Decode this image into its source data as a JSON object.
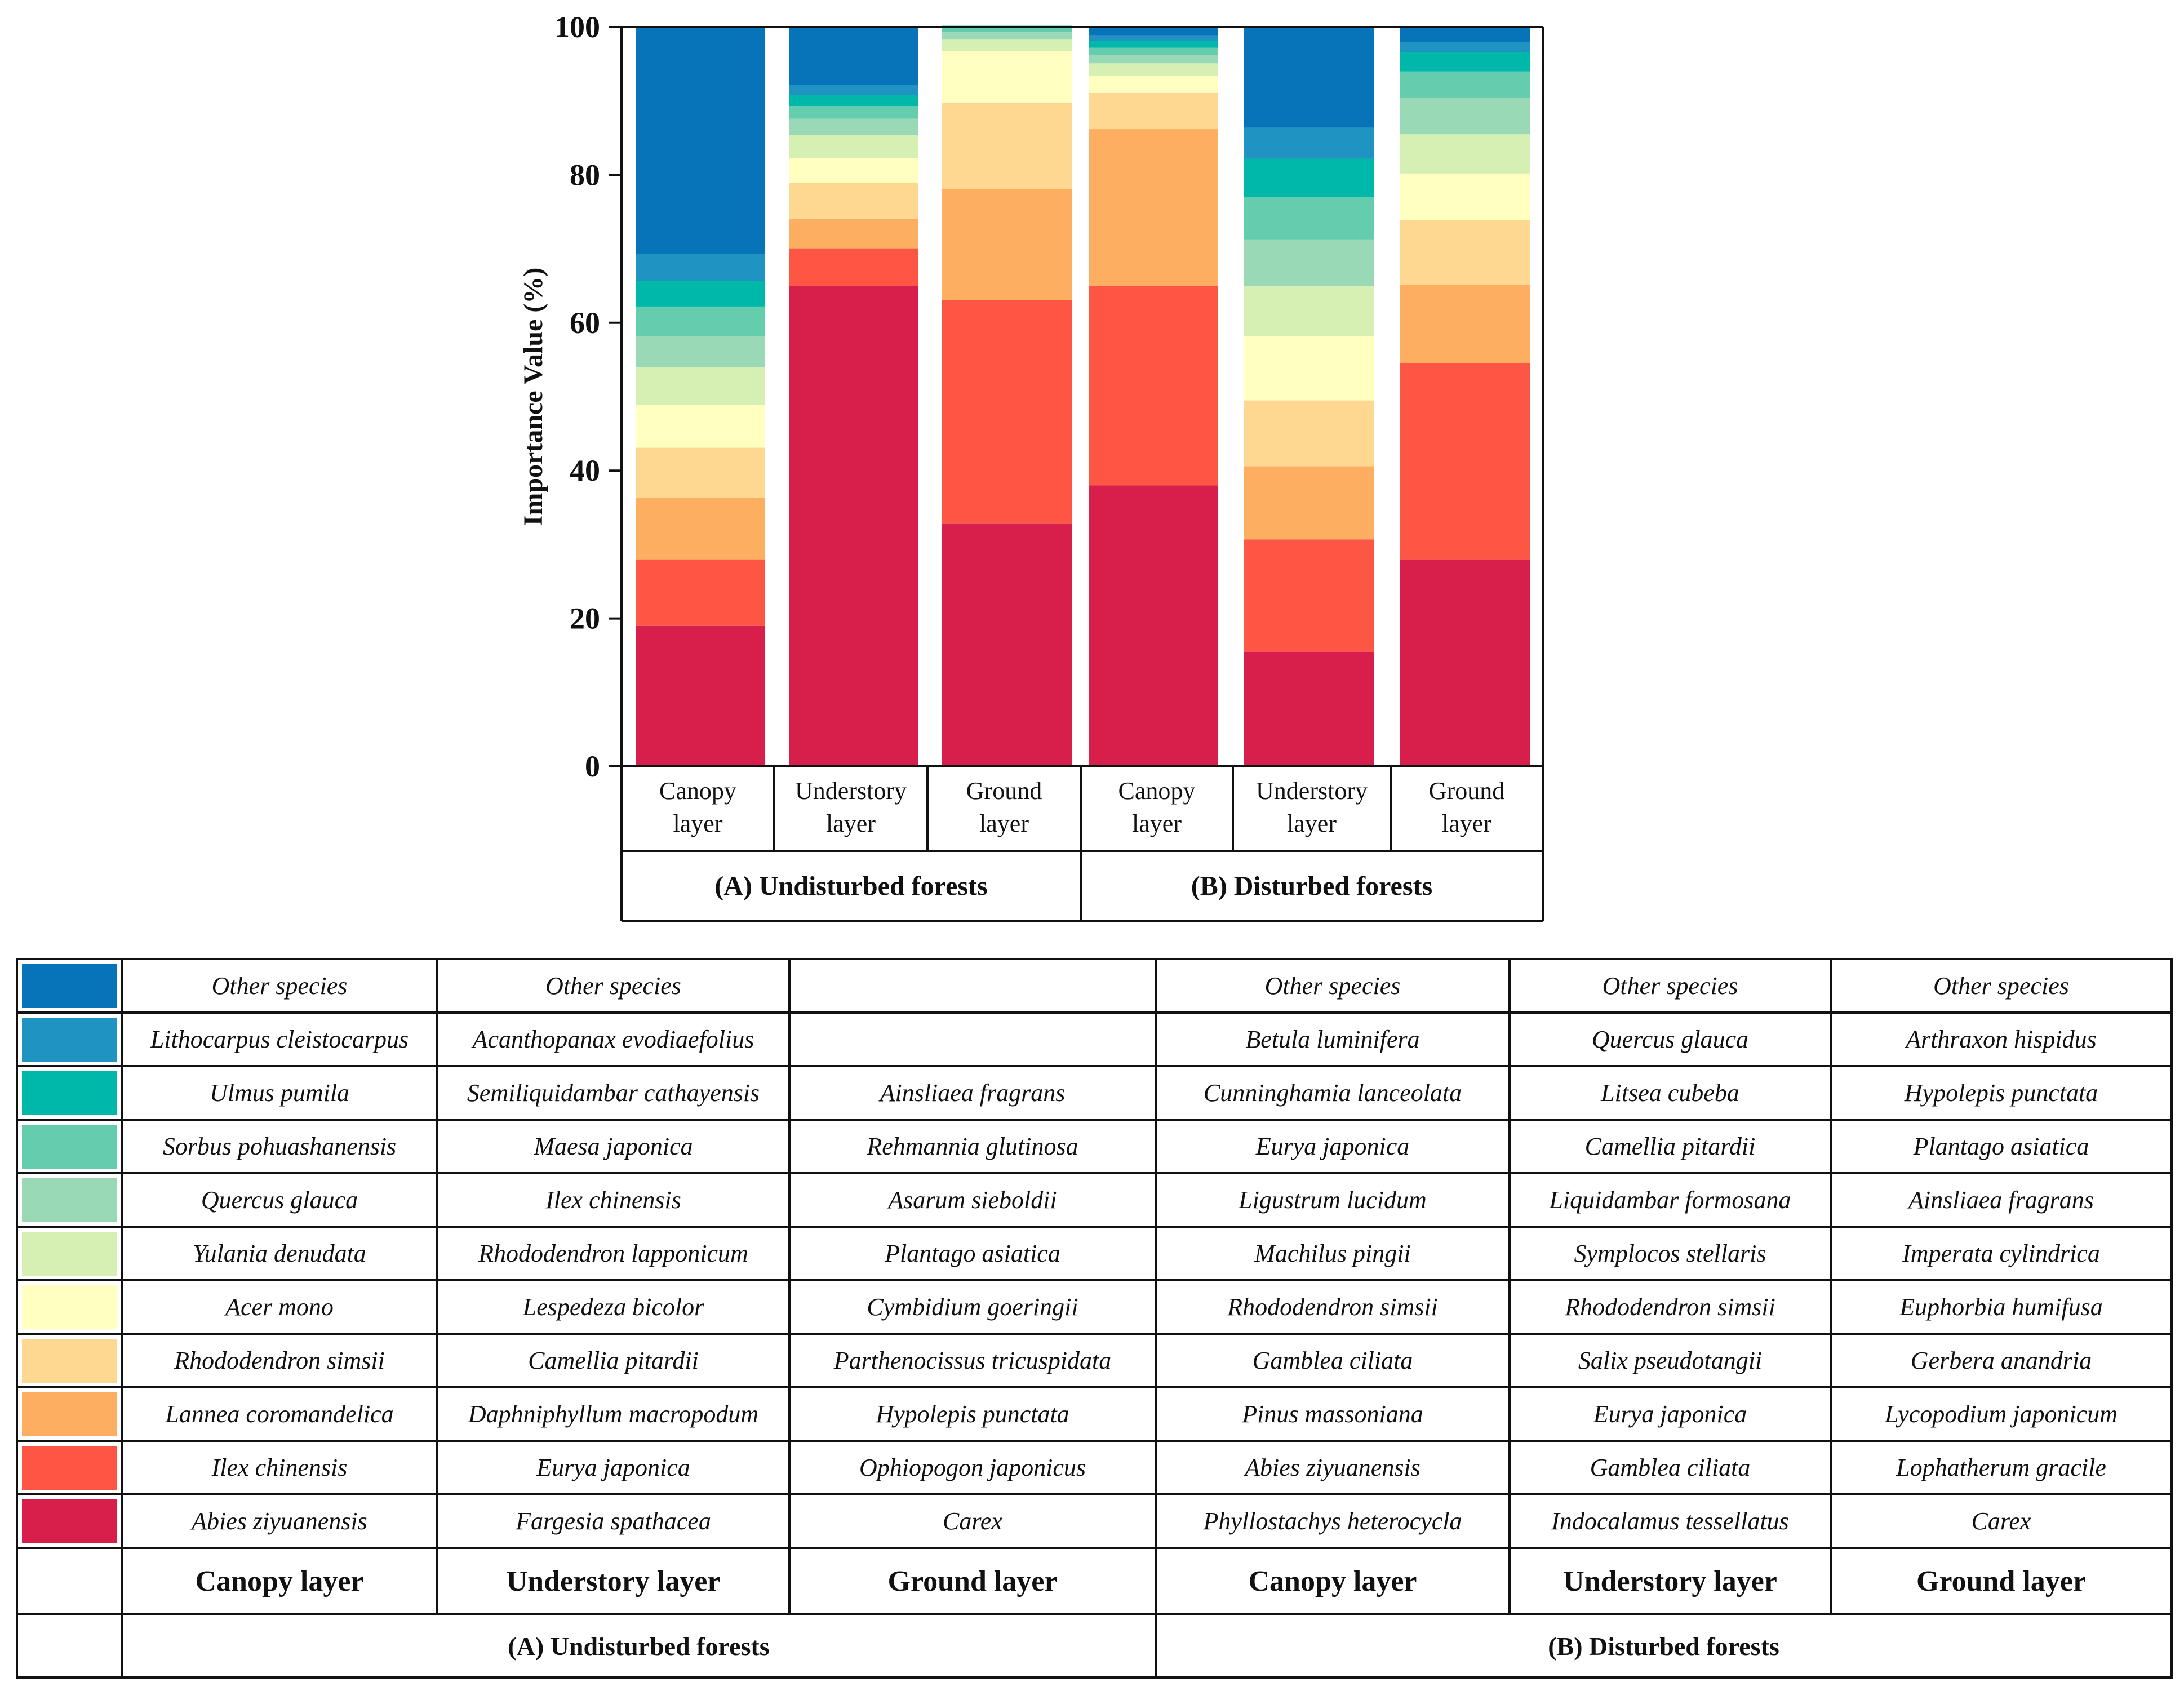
{
  "chart_data": {
    "type": "stacked-bar",
    "ylabel": "Importance Value    (%)",
    "ylim": [
      0,
      100
    ],
    "yticks": [
      "0",
      "20",
      "40",
      "60",
      "80",
      "100"
    ],
    "yticks_values": [
      0,
      20,
      40,
      60,
      80,
      100
    ],
    "groups": [
      "(A) Undisturbed forests",
      "(B) Disturbed forests"
    ],
    "bars": [
      {
        "group": 0,
        "label_lines": [
          "Canopy",
          "layer"
        ],
        "segments": [
          19,
          9,
          8.3,
          6.8,
          5.8,
          5.1,
          4.2,
          4,
          3.5,
          3.6,
          30.7
        ]
      },
      {
        "group": 0,
        "label_lines": [
          "Understory",
          "layer"
        ],
        "segments": [
          65,
          5,
          4.1,
          4.8,
          3.4,
          3.1,
          2.2,
          1.7,
          1.5,
          1.4,
          7.8
        ]
      },
      {
        "group": 0,
        "label_lines": [
          "Ground",
          "layer"
        ],
        "segments": [
          32.8,
          30.3,
          15,
          11.7,
          7,
          1.5,
          1,
          0.9,
          0,
          0,
          0
        ]
      },
      {
        "group": 1,
        "label_lines": [
          "Canopy",
          "layer"
        ],
        "segments": [
          38,
          27,
          21.2,
          4.9,
          2.3,
          1.7,
          1.1,
          1,
          0.9,
          0.7,
          1.2
        ]
      },
      {
        "group": 1,
        "label_lines": [
          "Understory",
          "layer"
        ],
        "segments": [
          15.5,
          15.2,
          9.9,
          8.9,
          8.7,
          6.8,
          6.2,
          5.8,
          5.2,
          4.2,
          13.6
        ]
      },
      {
        "group": 1,
        "label_lines": [
          "Ground",
          "layer"
        ],
        "segments": [
          28,
          26.5,
          10.6,
          8.8,
          6.3,
          5.3,
          4.9,
          3.6,
          2.6,
          1.4,
          2
        ]
      }
    ],
    "colors": [
      "#d81e4a",
      "#fd5645",
      "#fdae60",
      "#fed890",
      "#ffffbf",
      "#d6efb3",
      "#99d9b5",
      "#64cdad",
      "#00b8a9",
      "#1f93c2",
      "#0774b9"
    ]
  },
  "legend": {
    "colors_top_down": [
      "#0774b9",
      "#1f93c2",
      "#00b8a9",
      "#64cdad",
      "#99d9b5",
      "#d6efb3",
      "#ffffbf",
      "#fed890",
      "#fdae60",
      "#fd5645",
      "#d81e4a"
    ],
    "columns": [
      {
        "species": [
          "Other species",
          "Lithocarpus cleistocarpus",
          "Ulmus pumila",
          "Sorbus pohuashanensis",
          "Quercus glauca",
          "Yulania denudata",
          "Acer mono",
          "Rhododendron simsii",
          "Lannea coromandelica",
          "Ilex chinensis",
          "Abies ziyuanensis"
        ]
      },
      {
        "species": [
          "Other species",
          "Acanthopanax evodiaefolius",
          "Semiliquidambar cathayensis",
          "Maesa japonica",
          "Ilex chinensis",
          "Rhododendron lapponicum",
          "Lespedeza bicolor",
          "Camellia pitardii",
          "Daphniphyllum macropodum",
          "Eurya japonica",
          "Fargesia spathacea"
        ]
      },
      {
        "species": [
          "",
          "",
          "Ainsliaea fragrans",
          "Rehmannia glutinosa",
          "Asarum sieboldii",
          "Plantago asiatica",
          "Cymbidium goeringii",
          "Parthenocissus tricuspidata",
          "Hypolepis punctata",
          "Ophiopogon japonicus",
          "Carex"
        ]
      },
      {
        "species": [
          "Other species",
          "Betula luminifera",
          "Cunninghamia lanceolata",
          "Eurya japonica",
          "Ligustrum lucidum",
          "Machilus pingii",
          "Rhododendron simsii",
          "Gamblea ciliata",
          "Pinus massoniana",
          "Abies ziyuanensis",
          "Phyllostachys heterocycla"
        ]
      },
      {
        "species": [
          "Other species",
          "Quercus glauca",
          "Litsea cubeba",
          "Camellia pitardii",
          "Liquidambar formosana",
          "Symplocos stellaris",
          "Rhododendron simsii",
          "Salix pseudotangii",
          "Eurya japonica",
          "Gamblea ciliata",
          "Indocalamus tessellatus"
        ]
      },
      {
        "species": [
          "Other species",
          "Arthraxon hispidus",
          "Hypolepis punctata",
          "Plantago asiatica",
          "Ainsliaea fragrans",
          "Imperata cylindrica",
          "Euphorbia humifusa",
          "Gerbera anandria",
          "Lycopodium japonicum",
          "Lophatherum gracile",
          "Carex"
        ]
      }
    ],
    "layer_headers": [
      "Canopy layer",
      "Understory layer",
      "Ground layer",
      "Canopy layer",
      "Understory layer",
      "Ground layer"
    ],
    "group_headers": [
      "(A) Undisturbed forests",
      "(B) Disturbed forests"
    ]
  }
}
